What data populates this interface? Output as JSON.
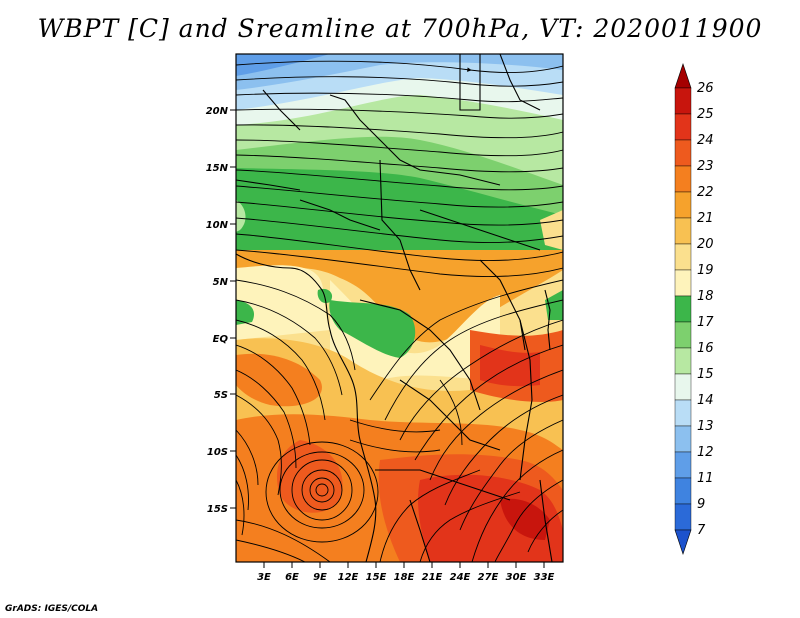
{
  "title": "WBPT [C] and Sreamline at 700hPa, VT: 2020011900",
  "credit": "GrADS: IGES/COLA",
  "lat_labels": [
    "20N",
    "15N",
    "10N",
    "5N",
    "EQ",
    "5S",
    "10S",
    "15S"
  ],
  "lon_labels": [
    "3E",
    "6E",
    "9E",
    "12E",
    "15E",
    "18E",
    "21E",
    "24E",
    "27E",
    "30E",
    "33E"
  ],
  "colorbar": {
    "labels": [
      "26",
      "25",
      "24",
      "23",
      "22",
      "21",
      "20",
      "19",
      "18",
      "17",
      "16",
      "15",
      "14",
      "13",
      "12",
      "11",
      "9",
      "7"
    ],
    "colors": [
      "#a50000",
      "#c8150d",
      "#e2341a",
      "#ee5a1e",
      "#f47f1f",
      "#f6a22c",
      "#f8c152",
      "#fbe08e",
      "#fef3bb",
      "#3cb64a",
      "#7dd06e",
      "#b7e8a2",
      "#e8f7ed",
      "#b9ddf6",
      "#8cc0ef",
      "#5f9ee8",
      "#3f83e0",
      "#2b6ad8",
      "#1c52cd"
    ]
  }
}
